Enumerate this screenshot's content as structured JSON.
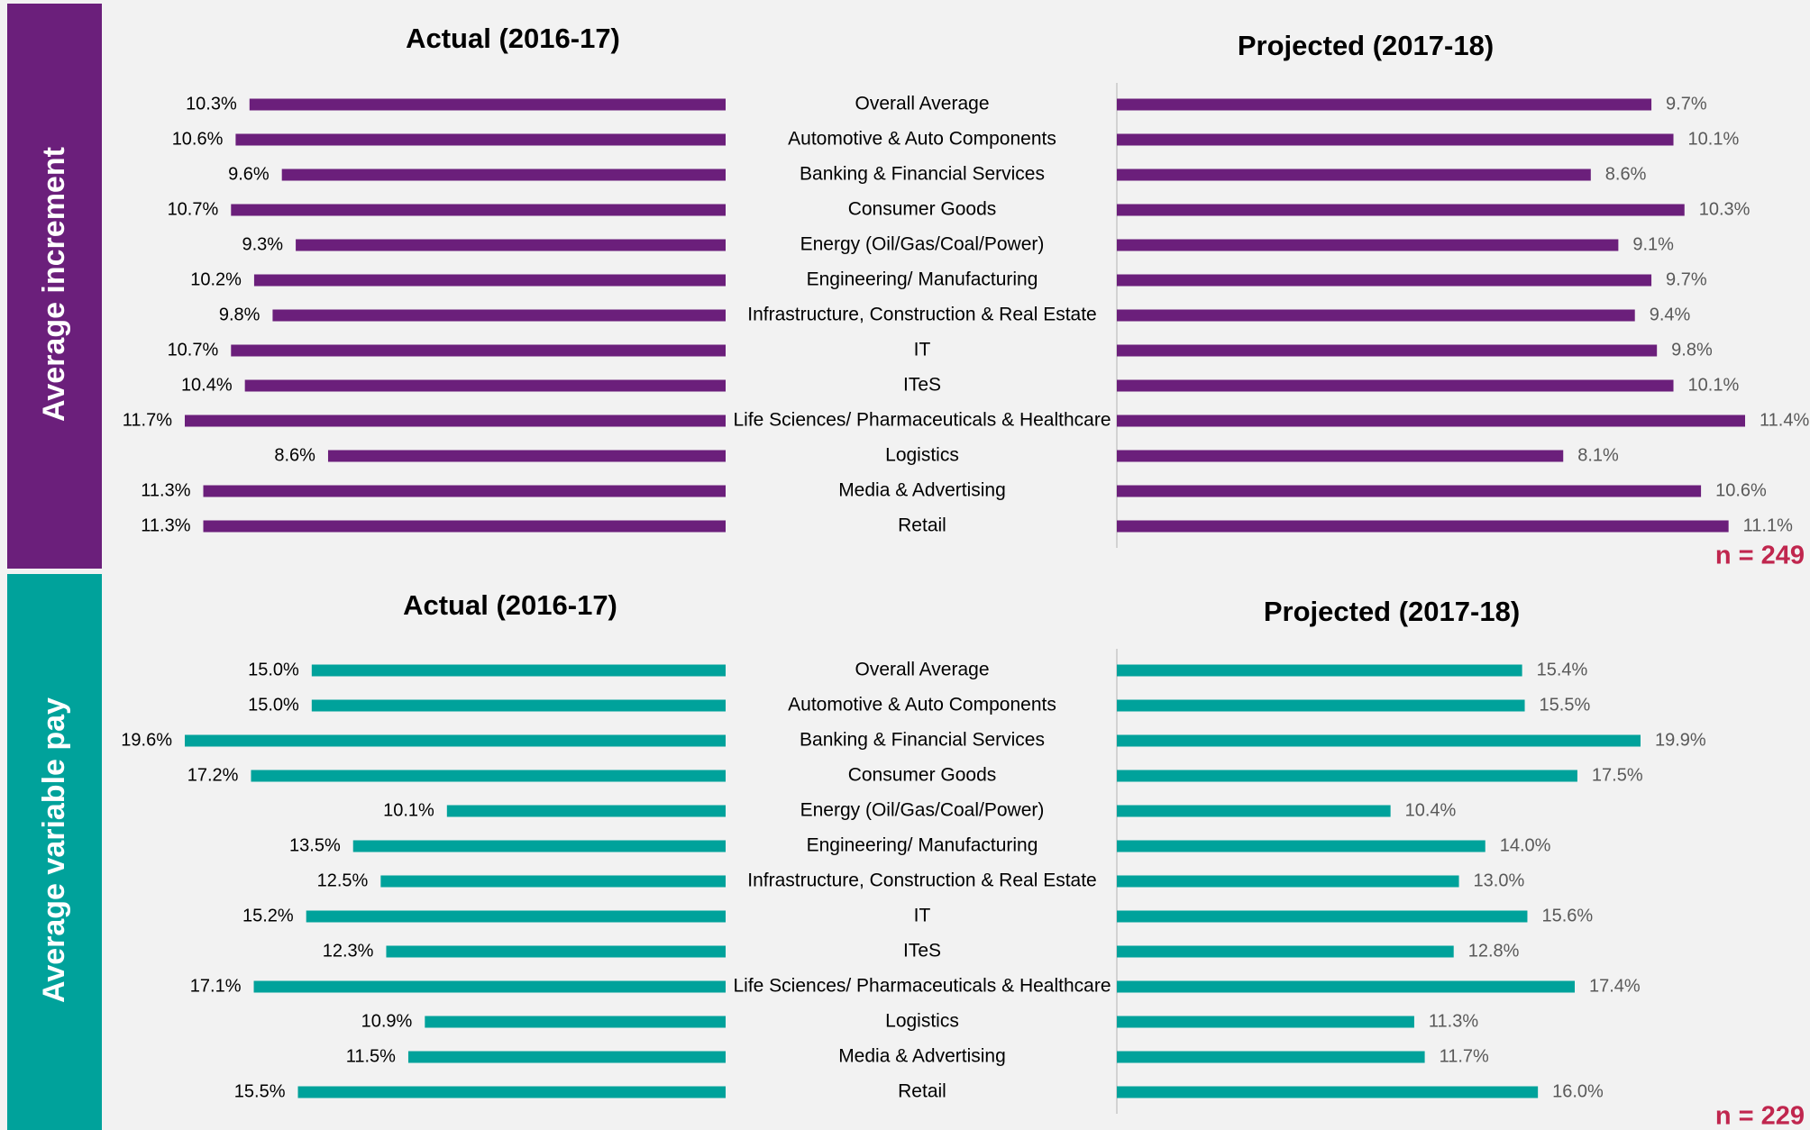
{
  "chart_data": [
    {
      "type": "bar",
      "label": "Average increment",
      "note": "n = 249",
      "categories": [
        "Overall Average",
        "Automotive & Auto Components",
        "Banking & Financial Services",
        "Consumer Goods",
        "Energy (Oil/Gas/Coal/Power)",
        "Engineering/ Manufacturing",
        "Infrastructure, Construction & Real Estate",
        "IT",
        "ITeS",
        "Life Sciences/ Pharmaceuticals & Healthcare",
        "Logistics",
        "Media & Advertising",
        "Retail"
      ],
      "series": [
        {
          "name": "Actual (2016-17)",
          "color": "#6b1f7b",
          "values": [
            10.3,
            10.6,
            9.6,
            10.7,
            9.3,
            10.2,
            9.8,
            10.7,
            10.4,
            11.7,
            8.6,
            11.3,
            11.3
          ],
          "value_labels": [
            "10.3%",
            "10.6%",
            "9.6%",
            "10.7%",
            "9.3%",
            "10.2%",
            "9.8%",
            "10.7%",
            "10.4%",
            "11.7%",
            "8.6%",
            "11.3%",
            "11.3%"
          ]
        },
        {
          "name": "Projected (2017-18)",
          "color": "#6b1f7b",
          "values": [
            9.7,
            10.1,
            8.6,
            10.3,
            9.1,
            9.7,
            9.4,
            9.8,
            10.1,
            11.4,
            8.1,
            10.6,
            11.1
          ],
          "value_labels": [
            "9.7%",
            "10.1%",
            "8.6%",
            "10.3%",
            "9.1%",
            "9.7%",
            "9.4%",
            "9.8%",
            "10.1%",
            "11.4%",
            "8.1%",
            "10.6%",
            "11.1%"
          ]
        }
      ]
    },
    {
      "type": "bar",
      "label": "Average variable pay",
      "note": "n = 229",
      "categories": [
        "Overall Average",
        "Automotive & Auto Components",
        "Banking & Financial Services",
        "Consumer Goods",
        "Energy (Oil/Gas/Coal/Power)",
        "Engineering/ Manufacturing",
        "Infrastructure, Construction & Real Estate",
        "IT",
        "ITeS",
        "Life Sciences/ Pharmaceuticals & Healthcare",
        "Logistics",
        "Media & Advertising",
        "Retail"
      ],
      "series": [
        {
          "name": "Actual (2016-17)",
          "color": "#00a29b",
          "values": [
            15.0,
            15.0,
            19.6,
            17.2,
            10.1,
            13.5,
            12.5,
            15.2,
            12.3,
            17.1,
            10.9,
            11.5,
            15.5
          ],
          "value_labels": [
            "15.0%",
            "15.0%",
            "19.6%",
            "17.2%",
            "10.1%",
            "13.5%",
            "12.5%",
            "15.2%",
            "12.3%",
            "17.1%",
            "10.9%",
            "11.5%",
            "15.5%"
          ]
        },
        {
          "name": "Projected (2017-18)",
          "color": "#00a29b",
          "values": [
            15.4,
            15.5,
            19.9,
            17.5,
            10.4,
            14.0,
            13.0,
            15.6,
            12.8,
            17.4,
            11.3,
            11.7,
            16.0
          ],
          "value_labels": [
            "15.4%",
            "15.5%",
            "19.9%",
            "17.5%",
            "10.4%",
            "14.0%",
            "13.0%",
            "15.6%",
            "12.8%",
            "17.4%",
            "11.3%",
            "11.7%",
            "16.0%"
          ]
        }
      ]
    }
  ]
}
